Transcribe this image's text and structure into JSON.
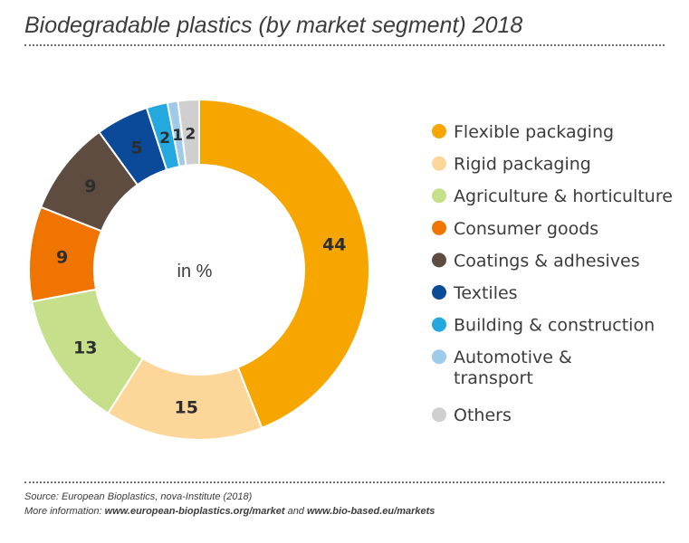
{
  "title": "Biodegradable plastics (by market segment) 2018",
  "source": {
    "line1": "Source: European Bioplastics, nova-Institute (2018)",
    "line2_prefix": "More information: ",
    "link1": "www.european-bioplastics.org/market",
    "line2_mid": " and ",
    "link2": "www.bio-based.eu/markets"
  },
  "chart_data": {
    "type": "pie",
    "variant": "donut",
    "title": "Biodegradable plastics (by market segment) 2018",
    "center_label": "in %",
    "legend_position": "right",
    "slices": [
      {
        "label": "Flexible packaging",
        "value": 44,
        "color": "#f7a600"
      },
      {
        "label": "Rigid packaging",
        "value": 15,
        "color": "#fdd69a"
      },
      {
        "label": "Agriculture & horticulture",
        "value": 13,
        "color": "#c5df8a"
      },
      {
        "label": "Consumer goods",
        "value": 9,
        "color": "#f07400"
      },
      {
        "label": "Coatings & adhesives",
        "value": 9,
        "color": "#5e4c40"
      },
      {
        "label": "Textiles",
        "value": 5,
        "color": "#0a4a98"
      },
      {
        "label": "Building & construction",
        "value": 2,
        "color": "#23a8df"
      },
      {
        "label": "Automotive & transport",
        "legend_lines": [
          "Automotive &",
          "transport"
        ],
        "value": 1,
        "color": "#9fcbea"
      },
      {
        "label": "Others",
        "value": 2,
        "color": "#cfcfcf"
      }
    ]
  }
}
